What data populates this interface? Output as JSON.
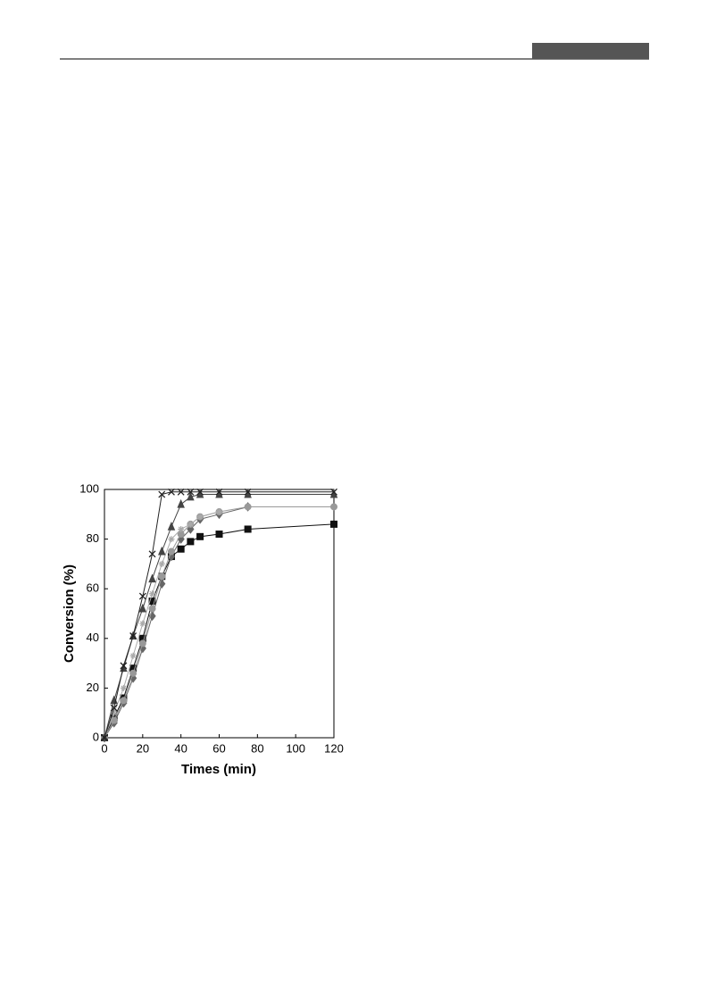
{
  "chart_data": {
    "type": "line",
    "xlabel": "Times (min)",
    "ylabel": "Conversion (%)",
    "xlim": [
      0,
      120
    ],
    "ylim": [
      0,
      100
    ],
    "xticks": [
      0,
      20,
      40,
      60,
      80,
      100,
      120
    ],
    "yticks": [
      0,
      20,
      40,
      60,
      80,
      100
    ],
    "grid": false,
    "series": [
      {
        "color": "#111111",
        "marker": "square",
        "x": [
          0,
          5,
          10,
          15,
          20,
          25,
          30,
          35,
          40,
          45,
          50,
          60,
          75,
          120
        ],
        "values": [
          0,
          8,
          16,
          28,
          40,
          55,
          65,
          73,
          76,
          79,
          81,
          82,
          84,
          86
        ]
      },
      {
        "color": "#666666",
        "marker": "diamond",
        "x": [
          0,
          5,
          10,
          15,
          20,
          25,
          30,
          35,
          40,
          45,
          50,
          60,
          75
        ],
        "values": [
          0,
          6,
          14,
          24,
          36,
          49,
          62,
          73,
          80,
          84,
          88,
          90,
          93
        ]
      },
      {
        "color": "#999999",
        "marker": "circle",
        "x": [
          0,
          5,
          10,
          15,
          20,
          25,
          30,
          35,
          40,
          45,
          50,
          60,
          75,
          120
        ],
        "values": [
          0,
          7,
          15,
          26,
          38,
          52,
          65,
          75,
          82,
          86,
          89,
          91,
          93,
          93
        ]
      },
      {
        "color": "#aaaaaa",
        "marker": "star",
        "x": [
          0,
          5,
          10,
          15,
          20,
          25,
          30,
          35,
          40,
          45,
          50,
          60
        ],
        "values": [
          0,
          10,
          20,
          33,
          46,
          58,
          70,
          80,
          84,
          86,
          89,
          91
        ]
      },
      {
        "color": "#444444",
        "marker": "triangle",
        "x": [
          0,
          5,
          10,
          15,
          20,
          25,
          30,
          35,
          40,
          45,
          50,
          60,
          75,
          120
        ],
        "values": [
          0,
          15,
          28,
          41,
          52,
          64,
          75,
          85,
          94,
          97,
          98,
          98,
          98,
          98
        ]
      },
      {
        "color": "#222222",
        "marker": "x",
        "x": [
          0,
          5,
          10,
          15,
          20,
          25,
          30,
          35,
          40,
          45,
          50,
          60,
          75,
          120
        ],
        "values": [
          0,
          12,
          29,
          41,
          57,
          74,
          98,
          99,
          99,
          99,
          99,
          99,
          99,
          99
        ]
      }
    ]
  }
}
